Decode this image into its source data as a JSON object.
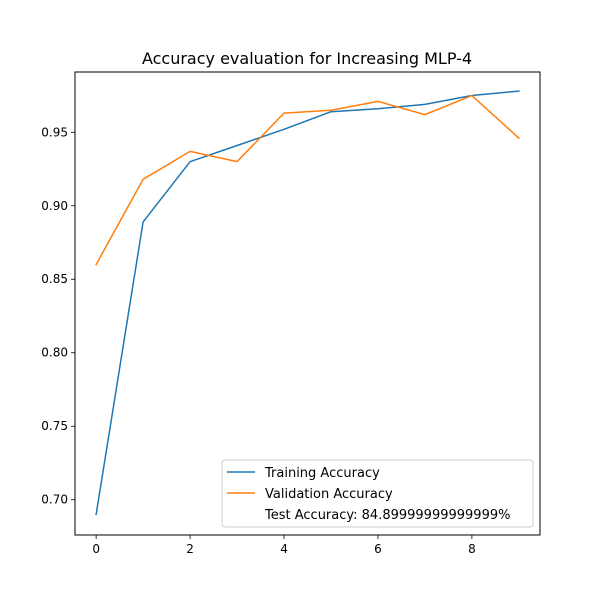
{
  "chart_data": {
    "type": "line",
    "title": "Accuracy evaluation for Increasing MLP-4",
    "xlabel": "",
    "ylabel": "",
    "xlim": [
      -0.45,
      9.45
    ],
    "ylim": [
      0.676,
      0.991
    ],
    "xticks": [
      0,
      2,
      4,
      6,
      8
    ],
    "yticks": [
      0.7,
      0.75,
      0.8,
      0.85,
      0.9,
      0.95
    ],
    "xtick_labels": [
      "0",
      "2",
      "4",
      "6",
      "8"
    ],
    "ytick_labels": [
      "0.70",
      "0.75",
      "0.80",
      "0.85",
      "0.90",
      "0.95"
    ],
    "x": [
      0,
      1,
      2,
      3,
      4,
      5,
      6,
      7,
      8,
      9
    ],
    "grid": false,
    "legend_position": "lower-right",
    "series": [
      {
        "name": "Training Accuracy",
        "color": "#1f77b4",
        "values": [
          0.69,
          0.889,
          0.93,
          0.941,
          0.952,
          0.964,
          0.966,
          0.969,
          0.975,
          0.978
        ]
      },
      {
        "name": "Validation Accuracy",
        "color": "#ff7f0e",
        "values": [
          0.86,
          0.918,
          0.937,
          0.93,
          0.963,
          0.965,
          0.971,
          0.962,
          0.975,
          0.946
        ]
      }
    ],
    "legend_extra": "Test Accuracy: 84.89999999999999%"
  }
}
